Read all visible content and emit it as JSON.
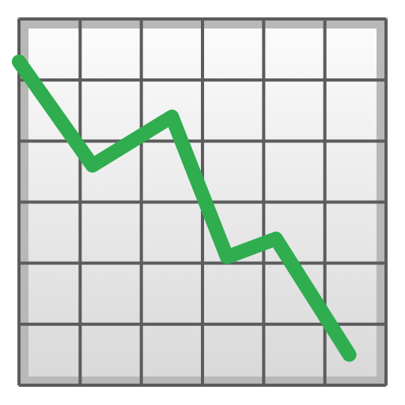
{
  "icon": {
    "name": "chart-decreasing-icon",
    "colors": {
      "line": "#2fad4f",
      "grid": "#5c5c5c",
      "frame": "#b8b8b8",
      "panel_top": "#fbfbfb",
      "panel_bottom": "#d9d9d9"
    },
    "grid": {
      "columns": 6,
      "rows": 6
    },
    "chart_data": {
      "type": "line",
      "x": [
        0,
        1.2,
        2.5,
        3.4,
        4.2,
        5.4
      ],
      "values": [
        5.3,
        3.6,
        4.4,
        2.1,
        2.4,
        0.5
      ],
      "xlim": [
        0,
        6
      ],
      "ylim": [
        0,
        6
      ]
    }
  }
}
